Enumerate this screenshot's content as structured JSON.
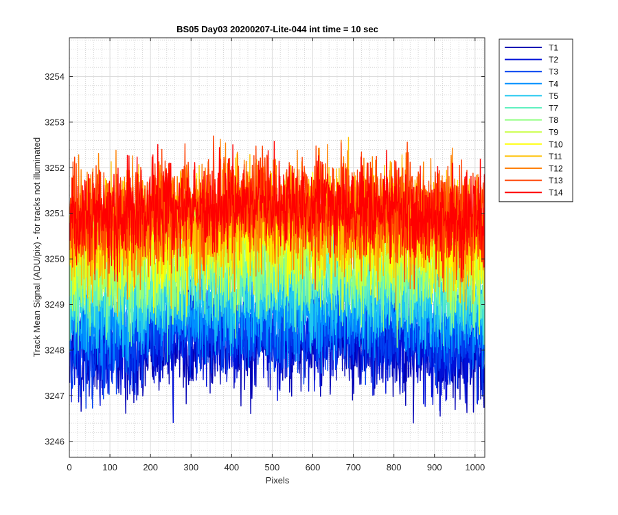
{
  "chart_data": {
    "type": "line",
    "title": "BS05 Day03 20200207-Lite-044 int time = 10 sec",
    "xlabel": "Pixels",
    "ylabel": "Track Mean Signal (ADU/pix) - for tracks not illuminated",
    "xlim": [
      0,
      1024
    ],
    "ylim": [
      3245.65,
      3254.85
    ],
    "xticks": [
      0,
      100,
      200,
      300,
      400,
      500,
      600,
      700,
      800,
      900,
      1000
    ],
    "yticks": [
      3246,
      3247,
      3248,
      3249,
      3250,
      3251,
      3252,
      3253,
      3254
    ],
    "grid": "major and minor",
    "legend_position": "outside-right",
    "x": "1 to 1024 (pixel index)",
    "series": [
      {
        "name": "T1",
        "color": "#0000b4",
        "mean": 3248.0,
        "noise": 0.75
      },
      {
        "name": "T2",
        "color": "#0010d8",
        "mean": 3248.1,
        "noise": 0.75
      },
      {
        "name": "T3",
        "color": "#0040f0",
        "mean": 3248.3,
        "noise": 0.72
      },
      {
        "name": "T4",
        "color": "#0090ff",
        "mean": 3248.7,
        "noise": 0.7
      },
      {
        "name": "T5",
        "color": "#20c8f0",
        "mean": 3249.1,
        "noise": 0.7
      },
      {
        "name": "T7",
        "color": "#60f0c0",
        "mean": 3249.5,
        "noise": 0.75
      },
      {
        "name": "T8",
        "color": "#90ff80",
        "mean": 3249.8,
        "noise": 0.75
      },
      {
        "name": "T9",
        "color": "#c8ff40",
        "mean": 3250.1,
        "noise": 0.8
      },
      {
        "name": "T10",
        "color": "#ffff00",
        "mean": 3250.4,
        "noise": 0.8
      },
      {
        "name": "T11",
        "color": "#ffc000",
        "mean": 3250.7,
        "noise": 0.85
      },
      {
        "name": "T12",
        "color": "#ff8000",
        "mean": 3250.9,
        "noise": 0.85
      },
      {
        "name": "T13",
        "color": "#ff4000",
        "mean": 3251.0,
        "noise": 0.8
      },
      {
        "name": "T14",
        "color": "#ff0000",
        "mean": 3251.0,
        "noise": 0.7
      }
    ]
  }
}
